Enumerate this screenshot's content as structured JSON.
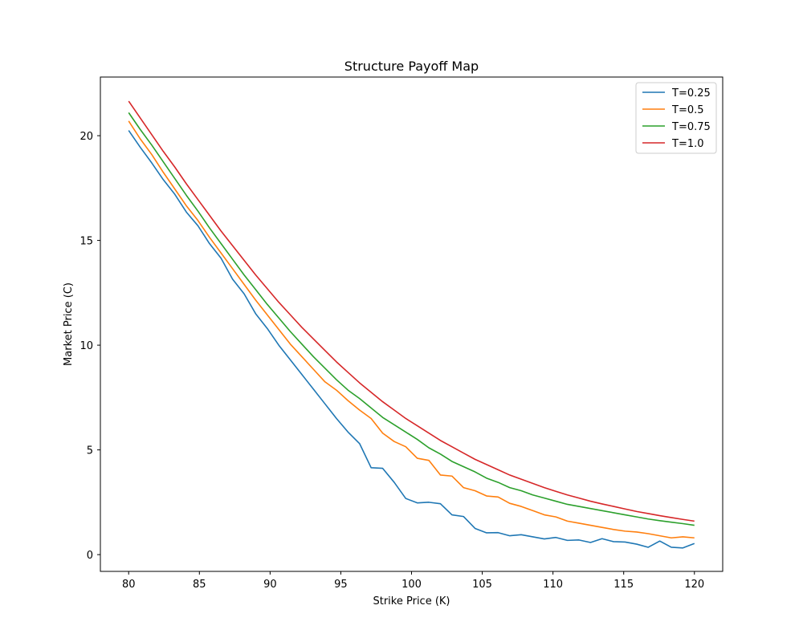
{
  "chart_data": {
    "type": "line",
    "title": "Structure Payoff Map",
    "xlabel": "Strike Price (K)",
    "ylabel": "Market Price (C)",
    "xlim": [
      78,
      122
    ],
    "ylim": [
      -0.8,
      22.8
    ],
    "xticks": [
      80,
      85,
      90,
      95,
      100,
      105,
      110,
      115,
      120
    ],
    "yticks": [
      0,
      5,
      10,
      15,
      20
    ],
    "grid": false,
    "legend": "top-right",
    "x": [
      80,
      80.816,
      81.633,
      82.449,
      83.265,
      84.082,
      84.898,
      85.714,
      86.531,
      87.347,
      88.163,
      88.98,
      89.796,
      90.612,
      91.429,
      92.245,
      93.061,
      93.878,
      94.694,
      95.51,
      96.327,
      97.143,
      97.959,
      98.776,
      99.592,
      100.408,
      101.224,
      102.041,
      102.857,
      103.673,
      104.49,
      105.306,
      106.122,
      106.939,
      107.755,
      108.571,
      109.388,
      110.204,
      111.02,
      111.837,
      112.653,
      113.469,
      114.286,
      115.102,
      115.918,
      116.735,
      117.551,
      118.367,
      119.184,
      120
    ],
    "series": [
      {
        "name": "T=0.25",
        "color": "#1f77b4",
        "values": [
          20.25,
          19.45,
          18.7,
          17.9,
          17.2,
          16.35,
          15.7,
          14.85,
          14.15,
          13.15,
          12.45,
          11.5,
          10.8,
          10.0,
          9.3,
          8.6,
          7.9,
          7.2,
          6.5,
          5.85,
          5.3,
          4.15,
          4.12,
          3.45,
          2.68,
          2.47,
          2.5,
          2.43,
          1.9,
          1.82,
          1.25,
          1.04,
          1.05,
          0.9,
          0.95,
          0.85,
          0.75,
          0.82,
          0.68,
          0.7,
          0.58,
          0.76,
          0.62,
          0.6,
          0.5,
          0.35,
          0.65,
          0.35,
          0.32,
          0.53
        ]
      },
      {
        "name": "T=0.5",
        "color": "#ff7f0e",
        "values": [
          20.7,
          19.85,
          19.1,
          18.25,
          17.45,
          16.65,
          15.95,
          15.15,
          14.4,
          13.65,
          12.9,
          12.15,
          11.45,
          10.75,
          10.05,
          9.45,
          8.85,
          8.25,
          7.85,
          7.35,
          6.9,
          6.5,
          5.8,
          5.4,
          5.15,
          4.6,
          4.5,
          3.8,
          3.75,
          3.2,
          3.05,
          2.8,
          2.75,
          2.45,
          2.3,
          2.1,
          1.9,
          1.8,
          1.6,
          1.5,
          1.4,
          1.3,
          1.2,
          1.12,
          1.08,
          1.0,
          0.9,
          0.8,
          0.85,
          0.8
        ]
      },
      {
        "name": "T=0.75",
        "color": "#2ca02c",
        "values": [
          21.1,
          20.3,
          19.55,
          18.75,
          17.95,
          17.15,
          16.4,
          15.6,
          14.85,
          14.1,
          13.35,
          12.65,
          11.95,
          11.3,
          10.65,
          10.05,
          9.45,
          8.9,
          8.35,
          7.85,
          7.45,
          7.0,
          6.55,
          6.2,
          5.85,
          5.5,
          5.1,
          4.8,
          4.45,
          4.2,
          3.95,
          3.65,
          3.45,
          3.2,
          3.05,
          2.85,
          2.7,
          2.55,
          2.4,
          2.3,
          2.2,
          2.1,
          2.0,
          1.9,
          1.8,
          1.7,
          1.62,
          1.55,
          1.48,
          1.4
        ]
      },
      {
        "name": "T=1.0",
        "color": "#d62728",
        "values": [
          21.65,
          20.85,
          20.05,
          19.25,
          18.5,
          17.7,
          16.95,
          16.2,
          15.45,
          14.75,
          14.05,
          13.35,
          12.7,
          12.05,
          11.45,
          10.85,
          10.3,
          9.75,
          9.2,
          8.7,
          8.2,
          7.75,
          7.3,
          6.9,
          6.5,
          6.15,
          5.8,
          5.45,
          5.15,
          4.85,
          4.55,
          4.3,
          4.05,
          3.8,
          3.6,
          3.4,
          3.2,
          3.02,
          2.85,
          2.7,
          2.55,
          2.42,
          2.3,
          2.18,
          2.06,
          1.96,
          1.86,
          1.77,
          1.68,
          1.6
        ]
      }
    ]
  }
}
